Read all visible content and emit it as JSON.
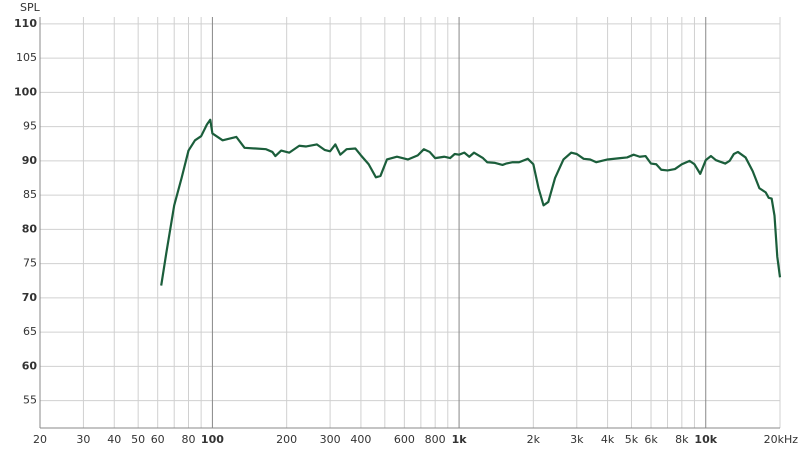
{
  "chart_data": {
    "type": "line",
    "y_axis_label": "SPL",
    "x_log_scale": true,
    "grid": true,
    "xlim": [
      20,
      20000
    ],
    "ylim": [
      51,
      111
    ],
    "xticks": [
      20,
      30,
      40,
      50,
      60,
      80,
      100,
      200,
      300,
      400,
      600,
      800,
      {
        "value": 1000,
        "label": "1k"
      },
      {
        "value": 2000,
        "label": "2k"
      },
      {
        "value": 3000,
        "label": "3k"
      },
      {
        "value": 4000,
        "label": "4k"
      },
      {
        "value": 5000,
        "label": "5k"
      },
      {
        "value": 6000,
        "label": "6k"
      },
      {
        "value": 8000,
        "label": "8k"
      },
      {
        "value": 10000,
        "label": "10k"
      },
      {
        "value": 20000,
        "label": "20kHz"
      }
    ],
    "x_minor_gridlines": [
      70,
      90,
      500,
      700,
      900,
      7000,
      9000
    ],
    "yticks": [
      55,
      60,
      65,
      70,
      75,
      80,
      85,
      90,
      95,
      100,
      105,
      110
    ],
    "series": [
      {
        "color": "#1b5e3b",
        "x": [
          62,
          65,
          70,
          75,
          80,
          85,
          90,
          95,
          98,
          100,
          110,
          125,
          135,
          150,
          165,
          175,
          180,
          190,
          205,
          225,
          240,
          265,
          285,
          300,
          315,
          330,
          350,
          380,
          400,
          430,
          460,
          480,
          510,
          560,
          620,
          680,
          720,
          760,
          800,
          870,
          920,
          960,
          1000,
          1050,
          1100,
          1150,
          1250,
          1300,
          1400,
          1500,
          1550,
          1650,
          1750,
          1900,
          2000,
          2100,
          2200,
          2300,
          2450,
          2650,
          2850,
          3000,
          3200,
          3400,
          3600,
          4000,
          4500,
          4800,
          5100,
          5400,
          5700,
          6000,
          6300,
          6600,
          7000,
          7500,
          8000,
          8600,
          9000,
          9500,
          10000,
          10500,
          11000,
          12000,
          12500,
          13000,
          13500,
          14500,
          15500,
          16500,
          17500,
          18000,
          18500,
          19000,
          19500,
          20000
        ],
        "values": [
          71.8,
          76.5,
          83.5,
          87.5,
          91.5,
          93,
          93.6,
          95.3,
          96,
          94,
          93,
          93.5,
          91.9,
          91.8,
          91.7,
          91.3,
          90.7,
          91.5,
          91.2,
          92.2,
          92.1,
          92.4,
          91.6,
          91.4,
          92.4,
          90.9,
          91.7,
          91.8,
          90.8,
          89.5,
          87.6,
          87.8,
          90.2,
          90.6,
          90.2,
          90.8,
          91.7,
          91.3,
          90.4,
          90.6,
          90.4,
          91,
          90.9,
          91.2,
          90.6,
          91.2,
          90.4,
          89.8,
          89.7,
          89.4,
          89.6,
          89.8,
          89.8,
          90.3,
          89.5,
          86,
          83.5,
          84,
          87.5,
          90.2,
          91.2,
          91,
          90.3,
          90.2,
          89.8,
          90.2,
          90.4,
          90.5,
          90.9,
          90.6,
          90.7,
          89.6,
          89.5,
          88.7,
          88.6,
          88.8,
          89.5,
          90,
          89.5,
          88.1,
          90.1,
          90.7,
          90.1,
          89.6,
          90,
          91,
          91.3,
          90.5,
          88.5,
          86,
          85.4,
          84.6,
          84.5,
          82,
          76,
          73
        ]
      }
    ]
  }
}
